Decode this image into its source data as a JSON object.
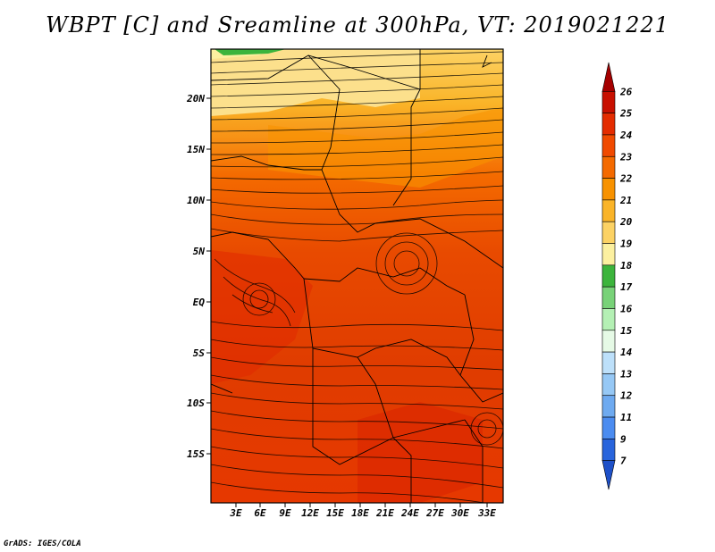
{
  "title": "WBPT [C] and Sreamline at 300hPa, VT: 2019021221",
  "credit": "GrADS: IGES/COLA",
  "lat_ticks": [
    {
      "label": "20N",
      "value": 20
    },
    {
      "label": "15N",
      "value": 15
    },
    {
      "label": "10N",
      "value": 10
    },
    {
      "label": "5N",
      "value": 5
    },
    {
      "label": "EQ",
      "value": 0
    },
    {
      "label": "5S",
      "value": -5
    },
    {
      "label": "10S",
      "value": -10
    },
    {
      "label": "15S",
      "value": -15
    }
  ],
  "lon_ticks": [
    {
      "label": "3E",
      "value": 3
    },
    {
      "label": "6E",
      "value": 6
    },
    {
      "label": "9E",
      "value": 9
    },
    {
      "label": "12E",
      "value": 12
    },
    {
      "label": "15E",
      "value": 15
    },
    {
      "label": "18E",
      "value": 18
    },
    {
      "label": "21E",
      "value": 21
    },
    {
      "label": "24E",
      "value": 24
    },
    {
      "label": "27E",
      "value": 27
    },
    {
      "label": "30E",
      "value": 30
    },
    {
      "label": "33E",
      "value": 33
    }
  ],
  "map_extent": {
    "lon_min": 0.0,
    "lon_max": 35.5,
    "lat_min": -20.0,
    "lat_max": 24.5
  },
  "colorbar": {
    "labels": [
      "26",
      "25",
      "24",
      "23",
      "22",
      "21",
      "20",
      "19",
      "18",
      "17",
      "16",
      "15",
      "14",
      "13",
      "12",
      "11",
      "9",
      "7"
    ],
    "colors": [
      "#a50000",
      "#c81000",
      "#e42c00",
      "#f04a00",
      "#f46a00",
      "#f89200",
      "#fab428",
      "#fcd264",
      "#fcf0a0",
      "#3cb43c",
      "#78d278",
      "#b4f0b4",
      "#e6fae6",
      "#bde0fa",
      "#96c8f5",
      "#6eaaf0",
      "#4b8cf0",
      "#2864dc",
      "#1e50c8"
    ]
  },
  "chart_data": {
    "type": "heatmap",
    "title": "WBPT [C] and Sreamline at 300hPa, VT: 2019021221",
    "xlabel": "",
    "ylabel": "",
    "xlim": [
      0.0,
      35.5
    ],
    "ylim": [
      -20.0,
      24.5
    ],
    "colorbar_levels": [
      7,
      9,
      11,
      12,
      13,
      14,
      15,
      16,
      17,
      18,
      19,
      20,
      21,
      22,
      23,
      24,
      25,
      26
    ],
    "field_summary": {
      "north_of_15N": "19-21",
      "10N_to_15N": "21-23",
      "10S_to_10N": "23-24",
      "south_of_10S": "22-24"
    }
  }
}
